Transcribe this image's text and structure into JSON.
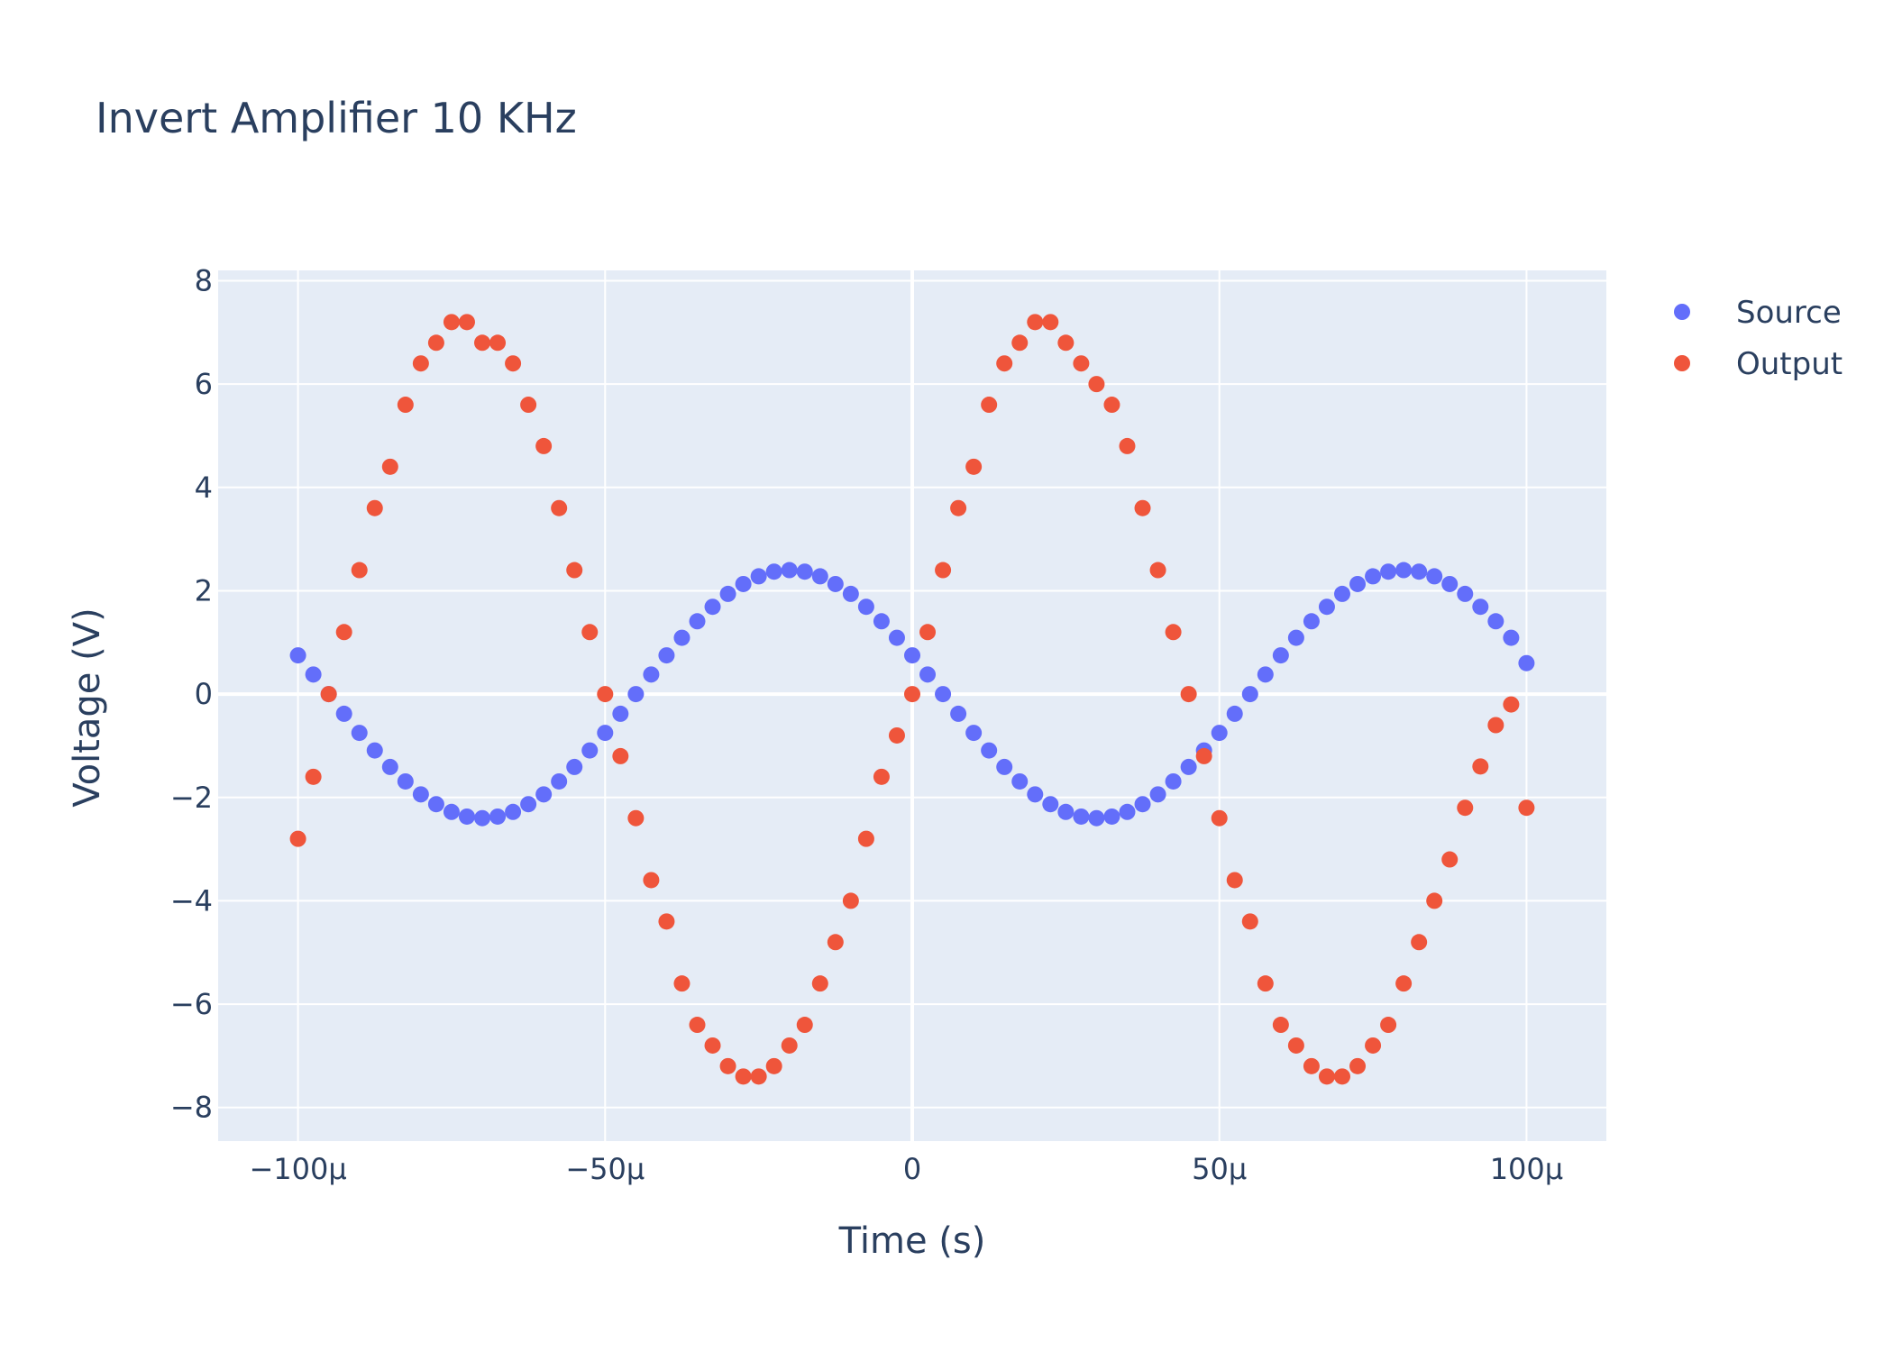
{
  "chart_data": {
    "type": "scatter",
    "title": "Invert Amplifier 10 KHz",
    "xlabel": "Time (s)",
    "ylabel": "Voltage (V)",
    "xlim": [
      -0.000113,
      0.000113
    ],
    "ylim": [
      -8.65,
      8.2
    ],
    "x_ticks": [
      {
        "value": -0.0001,
        "label": "−100μ"
      },
      {
        "value": -5e-05,
        "label": "−50μ"
      },
      {
        "value": 0,
        "label": "0"
      },
      {
        "value": 5e-05,
        "label": "50μ"
      },
      {
        "value": 0.0001,
        "label": "100μ"
      }
    ],
    "y_ticks": [
      {
        "value": 8,
        "label": "8"
      },
      {
        "value": 6,
        "label": "6"
      },
      {
        "value": 4,
        "label": "4"
      },
      {
        "value": 2,
        "label": "2"
      },
      {
        "value": 0,
        "label": "0"
      },
      {
        "value": -2,
        "label": "−2"
      },
      {
        "value": -4,
        "label": "−4"
      },
      {
        "value": -6,
        "label": "−6"
      },
      {
        "value": -8,
        "label": "−8"
      }
    ],
    "grid": true,
    "legend": "top-right",
    "series": [
      {
        "name": "Source",
        "color": "#636efa",
        "x": [
          -0.0001,
          -9.75e-05,
          -9.5e-05,
          -9.25e-05,
          -9e-05,
          -8.75e-05,
          -8.5e-05,
          -8.25e-05,
          -8e-05,
          -7.75e-05,
          -7.5e-05,
          -7.25e-05,
          -7e-05,
          -6.75e-05,
          -6.5e-05,
          -6.25e-05,
          -6e-05,
          -5.75e-05,
          -5.5e-05,
          -5.25e-05,
          -5e-05,
          -4.75e-05,
          -4.5e-05,
          -4.25e-05,
          -4e-05,
          -3.75e-05,
          -3.5e-05,
          -3.25e-05,
          -3e-05,
          -2.75e-05,
          -2.5e-05,
          -2.25e-05,
          -2e-05,
          -1.75e-05,
          -1.5e-05,
          -1.25e-05,
          -1e-05,
          -7.5e-06,
          -5e-06,
          -2.5e-06,
          0,
          2.5e-06,
          5e-06,
          7.5e-06,
          1e-05,
          1.25e-05,
          1.5e-05,
          1.75e-05,
          2e-05,
          2.25e-05,
          2.5e-05,
          2.75e-05,
          3e-05,
          3.25e-05,
          3.5e-05,
          3.75e-05,
          4e-05,
          4.25e-05,
          4.5e-05,
          4.75e-05,
          5e-05,
          5.25e-05,
          5.5e-05,
          5.75e-05,
          6e-05,
          6.25e-05,
          6.5e-05,
          6.75e-05,
          7e-05,
          7.25e-05,
          7.5e-05,
          7.75e-05,
          8e-05,
          8.25e-05,
          8.5e-05,
          8.75e-05,
          9e-05,
          9.25e-05,
          9.5e-05,
          9.75e-05,
          0.0001
        ],
        "y": [
          0.75,
          0.38,
          0,
          -0.38,
          -0.75,
          -1.09,
          -1.41,
          -1.69,
          -1.94,
          -2.13,
          -2.28,
          -2.37,
          -2.4,
          -2.37,
          -2.28,
          -2.13,
          -1.94,
          -1.69,
          -1.41,
          -1.09,
          -0.75,
          -0.38,
          0,
          0.38,
          0.75,
          1.09,
          1.41,
          1.69,
          1.94,
          2.13,
          2.28,
          2.37,
          2.4,
          2.37,
          2.28,
          2.13,
          1.94,
          1.69,
          1.41,
          1.09,
          0.75,
          0.38,
          0,
          -0.38,
          -0.75,
          -1.09,
          -1.41,
          -1.69,
          -1.94,
          -2.13,
          -2.28,
          -2.37,
          -2.4,
          -2.37,
          -2.28,
          -2.13,
          -1.94,
          -1.69,
          -1.41,
          -1.09,
          -0.75,
          -0.38,
          0,
          0.38,
          0.75,
          1.09,
          1.41,
          1.69,
          1.94,
          2.13,
          2.28,
          2.37,
          2.4,
          2.37,
          2.28,
          2.13,
          1.94,
          1.69,
          1.41,
          1.09,
          0.6
        ]
      },
      {
        "name": "Output",
        "color": "#ef553b",
        "x": [
          -0.0001,
          -9.75e-05,
          -9.5e-05,
          -9.25e-05,
          -9e-05,
          -8.75e-05,
          -8.5e-05,
          -8.25e-05,
          -8e-05,
          -7.75e-05,
          -7.5e-05,
          -7.25e-05,
          -7e-05,
          -6.75e-05,
          -6.5e-05,
          -6.25e-05,
          -6e-05,
          -5.75e-05,
          -5.5e-05,
          -5.25e-05,
          -5e-05,
          -4.75e-05,
          -4.5e-05,
          -4.25e-05,
          -4e-05,
          -3.75e-05,
          -3.5e-05,
          -3.25e-05,
          -3e-05,
          -2.75e-05,
          -2.5e-05,
          -2.25e-05,
          -2e-05,
          -1.75e-05,
          -1.5e-05,
          -1.25e-05,
          -1e-05,
          -7.5e-06,
          -5e-06,
          -2.5e-06,
          0,
          2.5e-06,
          5e-06,
          7.5e-06,
          1e-05,
          1.25e-05,
          1.5e-05,
          1.75e-05,
          2e-05,
          2.25e-05,
          2.5e-05,
          2.75e-05,
          3e-05,
          3.25e-05,
          3.5e-05,
          3.75e-05,
          4e-05,
          4.25e-05,
          4.5e-05,
          4.75e-05,
          5e-05,
          5.25e-05,
          5.5e-05,
          5.75e-05,
          6e-05,
          6.25e-05,
          6.5e-05,
          6.75e-05,
          7e-05,
          7.25e-05,
          7.5e-05,
          7.75e-05,
          8e-05,
          8.25e-05,
          8.5e-05,
          8.75e-05,
          9e-05,
          9.25e-05,
          9.5e-05,
          9.75e-05,
          0.0001
        ],
        "y": [
          -2.8,
          -1.6,
          0,
          1.2,
          2.4,
          3.6,
          4.4,
          5.6,
          6.4,
          6.8,
          7.2,
          7.2,
          6.8,
          6.8,
          6.4,
          5.6,
          4.8,
          3.6,
          2.4,
          1.2,
          0,
          -1.2,
          -2.4,
          -3.6,
          -4.4,
          -5.6,
          -6.4,
          -6.8,
          -7.2,
          -7.4,
          -7.4,
          -7.2,
          -6.8,
          -6.4,
          -5.6,
          -4.8,
          -4,
          -2.8,
          -1.6,
          -0.8,
          0,
          1.2,
          2.4,
          3.6,
          4.4,
          5.6,
          6.4,
          6.8,
          7.2,
          7.2,
          6.8,
          6.4,
          6,
          5.6,
          4.8,
          3.6,
          2.4,
          1.2,
          0,
          -1.2,
          -2.4,
          -3.6,
          -4.4,
          -5.6,
          -6.4,
          -6.8,
          -7.2,
          -7.4,
          -7.4,
          -7.2,
          -6.8,
          -6.4,
          -5.6,
          -4.8,
          -4,
          -3.2,
          -2.2,
          -1.4,
          -0.6,
          -0.2,
          -2.2
        ]
      }
    ]
  }
}
